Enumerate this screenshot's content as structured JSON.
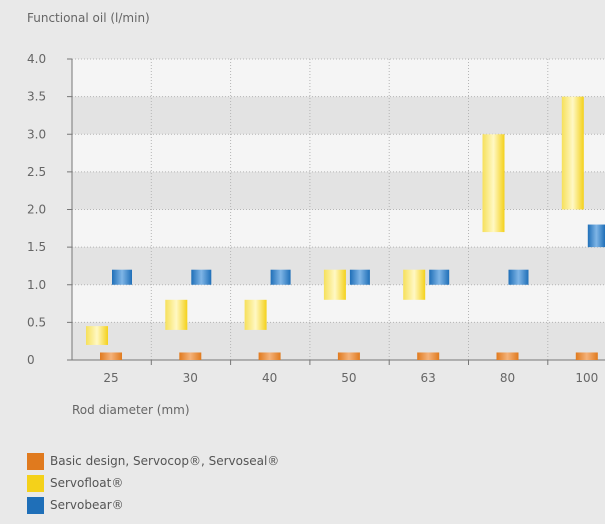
{
  "chart_data": {
    "type": "bar",
    "ylabel": "Functional oil (l/min)",
    "xlabel": "Rod diameter (mm)",
    "ylim": [
      0,
      4.0
    ],
    "y_ticks": [
      "4.0",
      "3.5",
      "3.0",
      "2.5",
      "2.0",
      "1.5",
      "1.0",
      "0.5",
      "0"
    ],
    "categories": [
      "25",
      "30",
      "40",
      "50",
      "63",
      "80",
      "100"
    ],
    "grid": true,
    "legend_position": "bottom-left",
    "series": [
      {
        "name": "Basic design, Servocop®, Servoseal®",
        "color": "#e07a1e",
        "ranges": [
          [
            0,
            0.1
          ],
          [
            0,
            0.1
          ],
          [
            0,
            0.1
          ],
          [
            0,
            0.1
          ],
          [
            0,
            0.1
          ],
          [
            0,
            0.1
          ],
          [
            0,
            0.1
          ]
        ]
      },
      {
        "name": "Servofloat®",
        "color": "#f4d11a",
        "ranges": [
          [
            0.2,
            0.45
          ],
          [
            0.4,
            0.8
          ],
          [
            0.4,
            0.8
          ],
          [
            0.8,
            1.2
          ],
          [
            0.8,
            1.2
          ],
          [
            1.7,
            3.0
          ],
          [
            2.0,
            3.5
          ]
        ]
      },
      {
        "name": "Servobear®",
        "color": "#1f6fb8",
        "ranges": [
          [
            1.0,
            1.2
          ],
          [
            1.0,
            1.2
          ],
          [
            1.0,
            1.2
          ],
          [
            1.0,
            1.2
          ],
          [
            1.0,
            1.2
          ],
          [
            1.0,
            1.2
          ],
          [
            1.5,
            1.8
          ]
        ]
      }
    ]
  }
}
